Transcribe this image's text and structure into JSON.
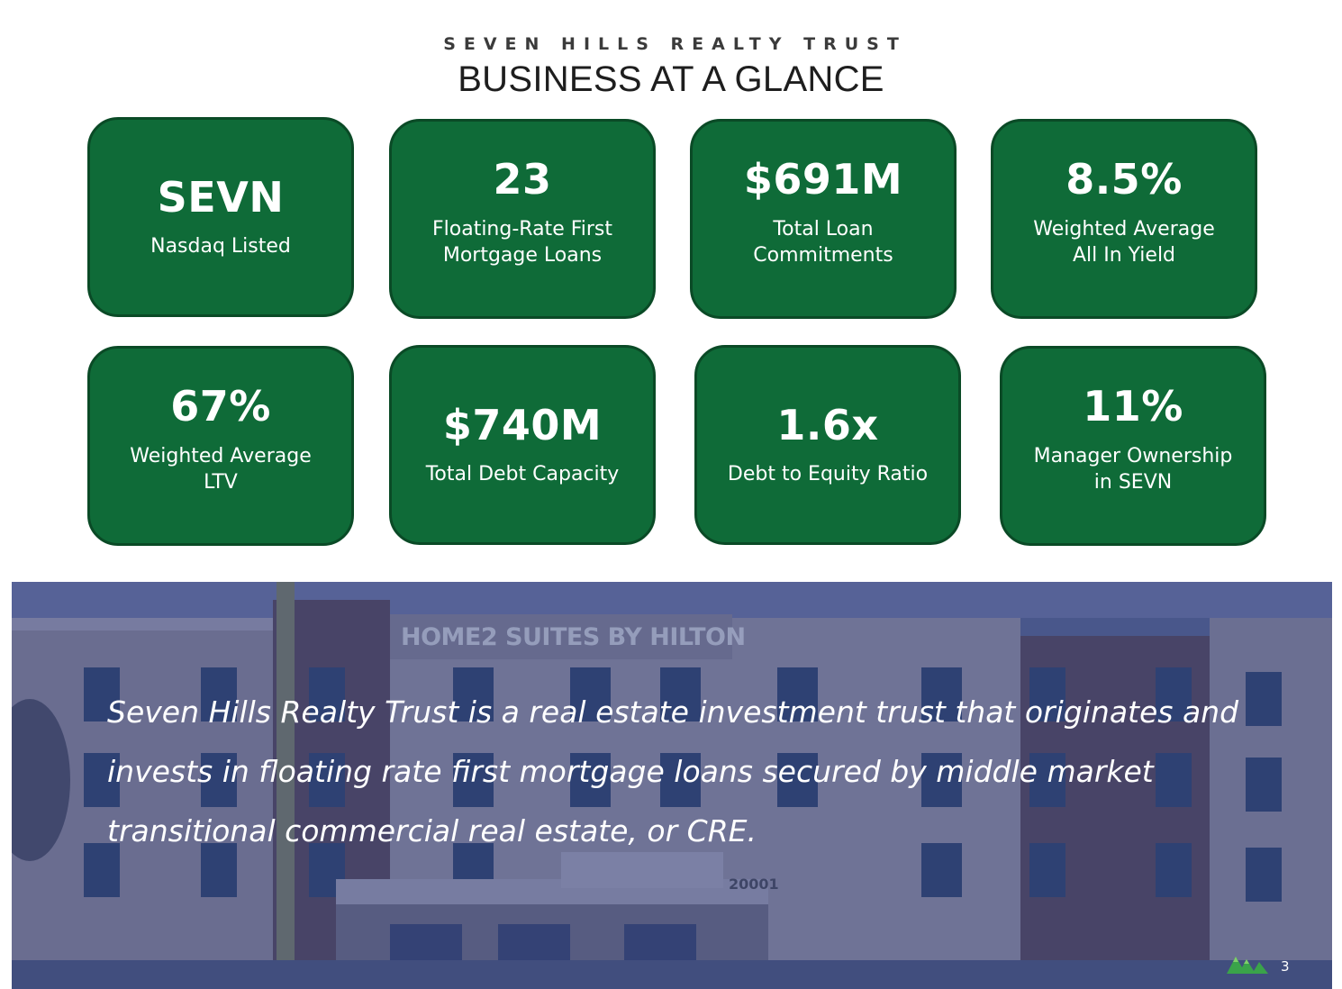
{
  "header": {
    "eyebrow": "SEVEN HILLS REALTY TRUST",
    "title": "BUSINESS AT A GLANCE"
  },
  "metrics": [
    {
      "value": "SEVN",
      "label": "Nasdaq Listed"
    },
    {
      "value": "23",
      "label": "Floating-Rate First\nMortgage Loans"
    },
    {
      "value": "$691M",
      "label": "Total Loan\nCommitments"
    },
    {
      "value": "8.5%",
      "label": "Weighted Average\nAll In Yield"
    },
    {
      "value": "67%",
      "label": "Weighted Average\nLTV"
    },
    {
      "value": "$740M",
      "label": "Total Debt Capacity"
    },
    {
      "value": "1.6x",
      "label": "Debt to Equity Ratio"
    },
    {
      "value": "11%",
      "label": "Manager Ownership\nin SEVN"
    }
  ],
  "banner": {
    "statement": "Seven Hills Realty Trust is a real estate investment trust that originates and invests in floating rate first mortgage loans secured by middle market transitional commercial real estate, or CRE.",
    "photo_sign": "HOME2 SUITES BY HILTON",
    "photo_address": "20001"
  },
  "footer": {
    "page_number": "3"
  },
  "colors": {
    "card_green": "#0f6b38",
    "card_border": "#0a4a26",
    "overlay_blue": "#303a80",
    "logo_green": "#3aa34a"
  },
  "icons": {
    "logo": "seven-hills-mountain-logo"
  }
}
